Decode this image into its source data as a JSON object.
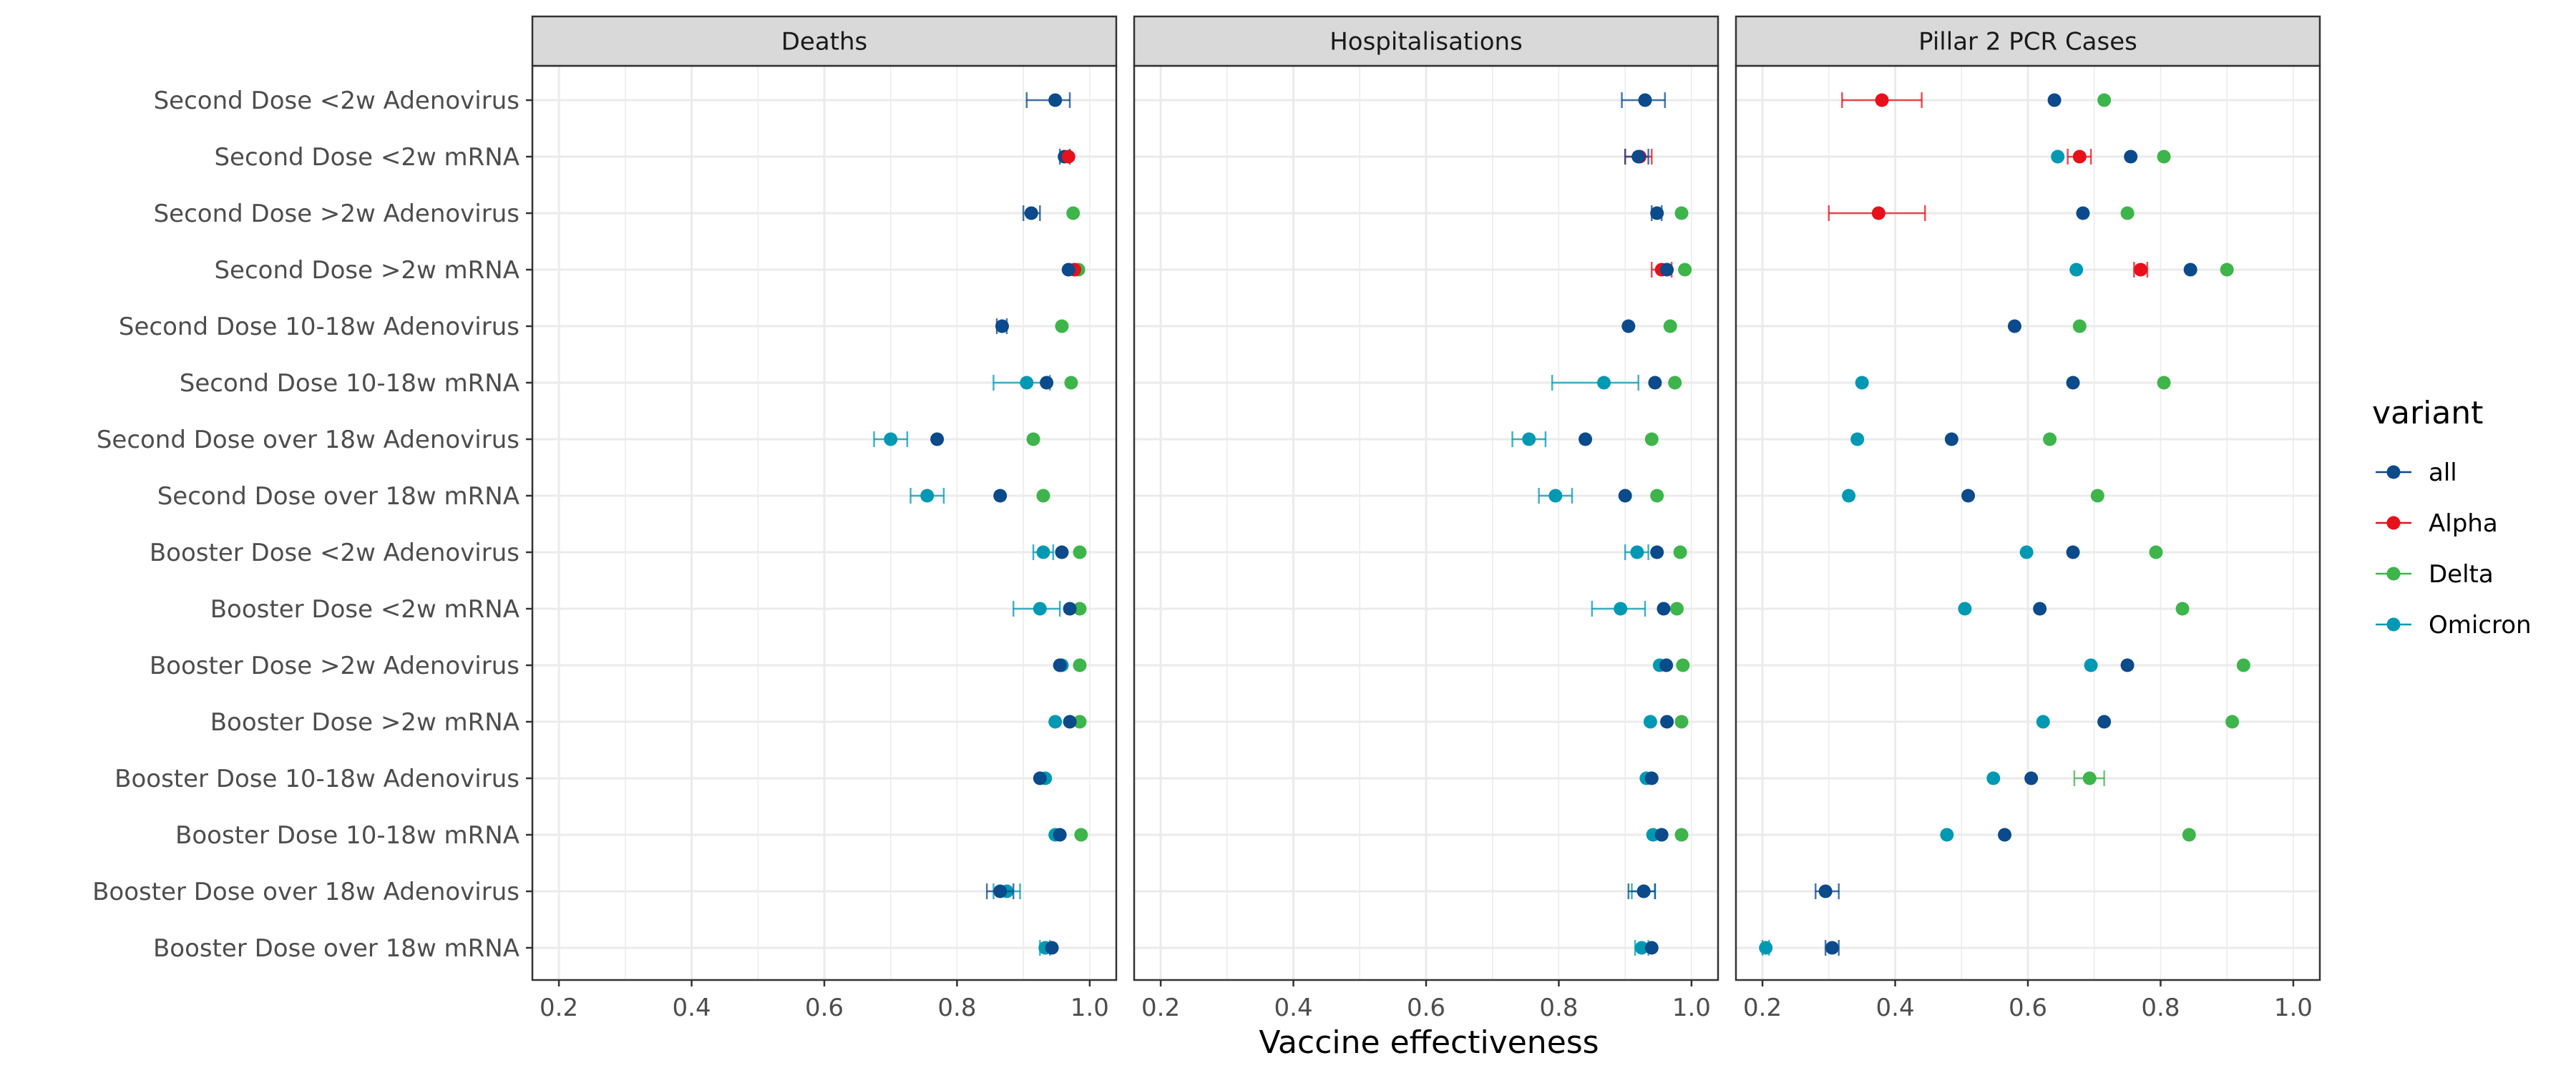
{
  "chart_data": {
    "type": "scatter",
    "subtype": "faceted forest plot with error bars",
    "xlabel": "Vaccine effectiveness",
    "xlim": [
      0.16,
      1.04
    ],
    "xticks": [
      0.2,
      0.4,
      0.6,
      0.8,
      1.0
    ],
    "xtick_labels": [
      "0.2",
      "0.4",
      "0.6",
      "0.8",
      "1.0"
    ],
    "grid": true,
    "legend": {
      "title": "variant",
      "position": "right",
      "entries": [
        "all",
        "Alpha",
        "Delta",
        "Omicron"
      ]
    },
    "colors": {
      "all": "#0b4a8b",
      "Alpha": "#e8101a",
      "Delta": "#3db54a",
      "Omicron": "#0099b4"
    },
    "categories": [
      "Second Dose <2w Adenovirus",
      "Second Dose <2w mRNA",
      "Second Dose >2w Adenovirus",
      "Second Dose >2w mRNA",
      "Second Dose 10-18w Adenovirus",
      "Second Dose 10-18w mRNA",
      "Second Dose over 18w Adenovirus",
      "Second Dose over 18w mRNA",
      "Booster Dose <2w Adenovirus",
      "Booster Dose <2w mRNA",
      "Booster Dose >2w Adenovirus",
      "Booster Dose >2w mRNA",
      "Booster Dose 10-18w Adenovirus",
      "Booster Dose 10-18w mRNA",
      "Booster Dose over 18w Adenovirus",
      "Booster Dose over 18w mRNA"
    ],
    "facets": [
      {
        "title": "Deaths",
        "points": [
          {
            "category": 0,
            "variant": "all",
            "value": 0.948,
            "lo": 0.905,
            "hi": 0.97
          },
          {
            "category": 1,
            "variant": "all",
            "value": 0.962,
            "lo": 0.955,
            "hi": 0.97
          },
          {
            "category": 1,
            "variant": "Alpha",
            "value": 0.968
          },
          {
            "category": 2,
            "variant": "all",
            "value": 0.912,
            "lo": 0.9,
            "hi": 0.925
          },
          {
            "category": 2,
            "variant": "Delta",
            "value": 0.975
          },
          {
            "category": 3,
            "variant": "Delta",
            "value": 0.983
          },
          {
            "category": 3,
            "variant": "Alpha",
            "value": 0.977
          },
          {
            "category": 3,
            "variant": "all",
            "value": 0.968
          },
          {
            "category": 4,
            "variant": "all",
            "value": 0.868,
            "lo": 0.86,
            "hi": 0.875
          },
          {
            "category": 4,
            "variant": "Delta",
            "value": 0.958
          },
          {
            "category": 5,
            "variant": "Omicron",
            "value": 0.905,
            "lo": 0.855,
            "hi": 0.94
          },
          {
            "category": 5,
            "variant": "Delta",
            "value": 0.972
          },
          {
            "category": 5,
            "variant": "all",
            "value": 0.935
          },
          {
            "category": 6,
            "variant": "Omicron",
            "value": 0.7,
            "lo": 0.675,
            "hi": 0.725
          },
          {
            "category": 6,
            "variant": "Delta",
            "value": 0.915
          },
          {
            "category": 6,
            "variant": "all",
            "value": 0.77
          },
          {
            "category": 7,
            "variant": "Omicron",
            "value": 0.755,
            "lo": 0.73,
            "hi": 0.78
          },
          {
            "category": 7,
            "variant": "Delta",
            "value": 0.93
          },
          {
            "category": 7,
            "variant": "all",
            "value": 0.865
          },
          {
            "category": 8,
            "variant": "Omicron",
            "value": 0.93,
            "lo": 0.915,
            "hi": 0.945
          },
          {
            "category": 8,
            "variant": "Delta",
            "value": 0.985
          },
          {
            "category": 8,
            "variant": "all",
            "value": 0.958
          },
          {
            "category": 9,
            "variant": "Omicron",
            "value": 0.925,
            "lo": 0.885,
            "hi": 0.955
          },
          {
            "category": 9,
            "variant": "Delta",
            "value": 0.985
          },
          {
            "category": 9,
            "variant": "all",
            "value": 0.97
          },
          {
            "category": 10,
            "variant": "Omicron",
            "value": 0.958
          },
          {
            "category": 10,
            "variant": "Delta",
            "value": 0.985
          },
          {
            "category": 10,
            "variant": "all",
            "value": 0.955
          },
          {
            "category": 11,
            "variant": "Omicron",
            "value": 0.948
          },
          {
            "category": 11,
            "variant": "Delta",
            "value": 0.985
          },
          {
            "category": 11,
            "variant": "all",
            "value": 0.97
          },
          {
            "category": 12,
            "variant": "Omicron",
            "value": 0.933
          },
          {
            "category": 12,
            "variant": "all",
            "value": 0.925
          },
          {
            "category": 13,
            "variant": "Omicron",
            "value": 0.948
          },
          {
            "category": 13,
            "variant": "Delta",
            "value": 0.987
          },
          {
            "category": 13,
            "variant": "all",
            "value": 0.955
          },
          {
            "category": 14,
            "variant": "Omicron",
            "value": 0.875,
            "lo": 0.855,
            "hi": 0.895
          },
          {
            "category": 14,
            "variant": "all",
            "value": 0.865,
            "lo": 0.845,
            "hi": 0.885
          },
          {
            "category": 15,
            "variant": "Omicron",
            "value": 0.933,
            "lo": 0.925,
            "hi": 0.94
          },
          {
            "category": 15,
            "variant": "all",
            "value": 0.943
          }
        ]
      },
      {
        "title": "Hospitalisations",
        "points": [
          {
            "category": 0,
            "variant": "all",
            "value": 0.93,
            "lo": 0.895,
            "hi": 0.96
          },
          {
            "category": 1,
            "variant": "Alpha",
            "value": 0.922,
            "lo": 0.9,
            "hi": 0.94
          },
          {
            "category": 1,
            "variant": "all",
            "value": 0.92,
            "lo": 0.9,
            "hi": 0.935
          },
          {
            "category": 2,
            "variant": "all",
            "value": 0.948,
            "lo": 0.94,
            "hi": 0.955
          },
          {
            "category": 2,
            "variant": "Delta",
            "value": 0.985
          },
          {
            "category": 3,
            "variant": "Delta",
            "value": 0.99
          },
          {
            "category": 3,
            "variant": "Alpha",
            "value": 0.955,
            "lo": 0.94,
            "hi": 0.97
          },
          {
            "category": 3,
            "variant": "all",
            "value": 0.963
          },
          {
            "category": 4,
            "variant": "all",
            "value": 0.905
          },
          {
            "category": 4,
            "variant": "Delta",
            "value": 0.968
          },
          {
            "category": 5,
            "variant": "Omicron",
            "value": 0.868,
            "lo": 0.79,
            "hi": 0.92
          },
          {
            "category": 5,
            "variant": "Delta",
            "value": 0.975
          },
          {
            "category": 5,
            "variant": "all",
            "value": 0.945
          },
          {
            "category": 6,
            "variant": "Omicron",
            "value": 0.755,
            "lo": 0.73,
            "hi": 0.78
          },
          {
            "category": 6,
            "variant": "Delta",
            "value": 0.94
          },
          {
            "category": 6,
            "variant": "all",
            "value": 0.84
          },
          {
            "category": 7,
            "variant": "Omicron",
            "value": 0.795,
            "lo": 0.77,
            "hi": 0.82
          },
          {
            "category": 7,
            "variant": "Delta",
            "value": 0.948
          },
          {
            "category": 7,
            "variant": "all",
            "value": 0.9
          },
          {
            "category": 8,
            "variant": "Omicron",
            "value": 0.918,
            "lo": 0.9,
            "hi": 0.935
          },
          {
            "category": 8,
            "variant": "Delta",
            "value": 0.983
          },
          {
            "category": 8,
            "variant": "all",
            "value": 0.948
          },
          {
            "category": 9,
            "variant": "Omicron",
            "value": 0.893,
            "lo": 0.85,
            "hi": 0.93
          },
          {
            "category": 9,
            "variant": "Delta",
            "value": 0.978
          },
          {
            "category": 9,
            "variant": "all",
            "value": 0.958
          },
          {
            "category": 10,
            "variant": "Omicron",
            "value": 0.952
          },
          {
            "category": 10,
            "variant": "Delta",
            "value": 0.987
          },
          {
            "category": 10,
            "variant": "all",
            "value": 0.962
          },
          {
            "category": 11,
            "variant": "Omicron",
            "value": 0.938
          },
          {
            "category": 11,
            "variant": "Delta",
            "value": 0.985
          },
          {
            "category": 11,
            "variant": "all",
            "value": 0.963
          },
          {
            "category": 12,
            "variant": "Omicron",
            "value": 0.932
          },
          {
            "category": 12,
            "variant": "all",
            "value": 0.94
          },
          {
            "category": 13,
            "variant": "Omicron",
            "value": 0.942
          },
          {
            "category": 13,
            "variant": "Delta",
            "value": 0.985
          },
          {
            "category": 13,
            "variant": "all",
            "value": 0.955
          },
          {
            "category": 14,
            "variant": "Omicron",
            "value": 0.928,
            "lo": 0.91,
            "hi": 0.945
          },
          {
            "category": 14,
            "variant": "all",
            "value": 0.928,
            "lo": 0.905,
            "hi": 0.945
          },
          {
            "category": 15,
            "variant": "Omicron",
            "value": 0.925,
            "lo": 0.915,
            "hi": 0.935
          },
          {
            "category": 15,
            "variant": "all",
            "value": 0.94
          }
        ]
      },
      {
        "title": "Pillar 2 PCR Cases",
        "points": [
          {
            "category": 0,
            "variant": "Delta",
            "value": 0.715
          },
          {
            "category": 0,
            "variant": "Alpha",
            "value": 0.38,
            "lo": 0.32,
            "hi": 0.44
          },
          {
            "category": 0,
            "variant": "all",
            "value": 0.64
          },
          {
            "category": 1,
            "variant": "Omicron",
            "value": 0.645
          },
          {
            "category": 1,
            "variant": "Delta",
            "value": 0.805
          },
          {
            "category": 1,
            "variant": "Alpha",
            "value": 0.678,
            "lo": 0.66,
            "hi": 0.695
          },
          {
            "category": 1,
            "variant": "all",
            "value": 0.755
          },
          {
            "category": 2,
            "variant": "Delta",
            "value": 0.75
          },
          {
            "category": 2,
            "variant": "Alpha",
            "value": 0.375,
            "lo": 0.3,
            "hi": 0.445
          },
          {
            "category": 2,
            "variant": "all",
            "value": 0.683
          },
          {
            "category": 3,
            "variant": "Omicron",
            "value": 0.673
          },
          {
            "category": 3,
            "variant": "Delta",
            "value": 0.9
          },
          {
            "category": 3,
            "variant": "Alpha",
            "value": 0.77,
            "lo": 0.76,
            "hi": 0.78
          },
          {
            "category": 3,
            "variant": "all",
            "value": 0.845
          },
          {
            "category": 4,
            "variant": "Delta",
            "value": 0.678
          },
          {
            "category": 4,
            "variant": "all",
            "value": 0.58
          },
          {
            "category": 5,
            "variant": "Omicron",
            "value": 0.35
          },
          {
            "category": 5,
            "variant": "Delta",
            "value": 0.805
          },
          {
            "category": 5,
            "variant": "all",
            "value": 0.668
          },
          {
            "category": 6,
            "variant": "Omicron",
            "value": 0.343
          },
          {
            "category": 6,
            "variant": "Delta",
            "value": 0.633
          },
          {
            "category": 6,
            "variant": "all",
            "value": 0.485
          },
          {
            "category": 7,
            "variant": "Omicron",
            "value": 0.33
          },
          {
            "category": 7,
            "variant": "Delta",
            "value": 0.705
          },
          {
            "category": 7,
            "variant": "all",
            "value": 0.51
          },
          {
            "category": 8,
            "variant": "Omicron",
            "value": 0.598
          },
          {
            "category": 8,
            "variant": "Delta",
            "value": 0.793
          },
          {
            "category": 8,
            "variant": "all",
            "value": 0.668
          },
          {
            "category": 9,
            "variant": "Omicron",
            "value": 0.505
          },
          {
            "category": 9,
            "variant": "Delta",
            "value": 0.833
          },
          {
            "category": 9,
            "variant": "all",
            "value": 0.618
          },
          {
            "category": 10,
            "variant": "Omicron",
            "value": 0.695
          },
          {
            "category": 10,
            "variant": "Delta",
            "value": 0.925
          },
          {
            "category": 10,
            "variant": "all",
            "value": 0.75
          },
          {
            "category": 11,
            "variant": "Omicron",
            "value": 0.623
          },
          {
            "category": 11,
            "variant": "Delta",
            "value": 0.908
          },
          {
            "category": 11,
            "variant": "all",
            "value": 0.715
          },
          {
            "category": 12,
            "variant": "Omicron",
            "value": 0.548
          },
          {
            "category": 12,
            "variant": "Delta",
            "value": 0.693,
            "lo": 0.67,
            "hi": 0.715
          },
          {
            "category": 12,
            "variant": "all",
            "value": 0.605
          },
          {
            "category": 13,
            "variant": "Omicron",
            "value": 0.478
          },
          {
            "category": 13,
            "variant": "Delta",
            "value": 0.843
          },
          {
            "category": 13,
            "variant": "all",
            "value": 0.565
          },
          {
            "category": 14,
            "variant": "all",
            "value": 0.295,
            "lo": 0.28,
            "hi": 0.315
          },
          {
            "category": 15,
            "variant": "Omicron",
            "value": 0.205,
            "lo": 0.2,
            "hi": 0.21
          },
          {
            "category": 15,
            "variant": "all",
            "value": 0.305,
            "lo": 0.295,
            "hi": 0.315
          }
        ]
      }
    ]
  }
}
